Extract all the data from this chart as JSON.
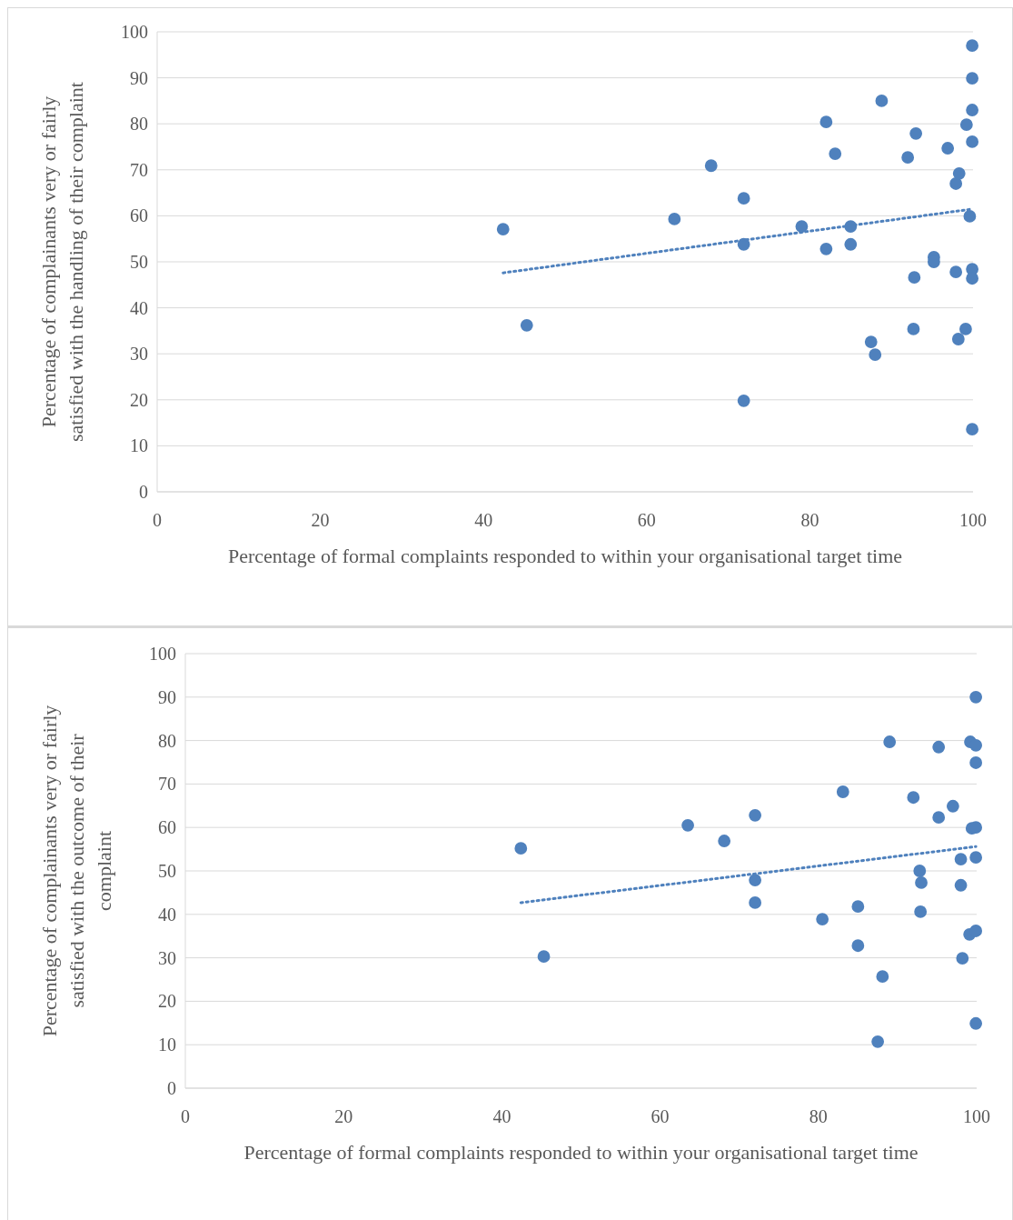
{
  "chart_data": [
    {
      "type": "scatter",
      "xlabel": "Percentage of formal complaints responded to within your organisational target time",
      "ylabel": "Percentage of complainants very or fairly satisfied with the handling of their complaint",
      "xlim": [
        0,
        100
      ],
      "ylim": [
        0,
        100
      ],
      "xticks": [
        0,
        20,
        40,
        60,
        80,
        100
      ],
      "yticks": [
        0,
        10,
        20,
        30,
        40,
        50,
        60,
        70,
        80,
        90,
        100
      ],
      "grid": "y",
      "marker": "circle",
      "series": [
        {
          "type": "scatter",
          "color": "#4f81bd",
          "x": [
            42.4,
            45.3,
            63.4,
            67.9,
            71.9,
            71.9,
            71.9,
            79.0,
            82.0,
            82.0,
            83.1,
            85.0,
            85.0,
            87.5,
            88.0,
            88.8,
            92.0,
            92.8,
            92.7,
            93.0,
            95.2,
            95.2,
            96.9,
            97.9,
            98.3,
            97.9,
            98.2,
            99.1,
            99.2,
            99.6,
            99.9,
            99.9,
            99.9,
            99.9,
            99.9,
            99.9,
            99.9
          ],
          "values": [
            57.1,
            36.2,
            59.3,
            70.9,
            63.8,
            53.8,
            19.8,
            57.7,
            80.4,
            52.8,
            73.5,
            57.7,
            53.8,
            32.6,
            29.8,
            85.0,
            72.7,
            46.6,
            35.4,
            77.9,
            51.0,
            50.0,
            74.7,
            67.0,
            69.2,
            47.8,
            33.2,
            35.4,
            79.8,
            59.9,
            97.0,
            89.9,
            83.0,
            76.1,
            48.4,
            46.4,
            13.6
          ]
        },
        {
          "type": "line",
          "color": "#4f81bd",
          "line_style": "dotted",
          "marker": "none",
          "x": [
            42.4,
            99.6
          ],
          "values": [
            47.6,
            61.4
          ]
        }
      ]
    },
    {
      "type": "scatter",
      "xlabel": "Percentage of formal complaints responded to within your organisational target time",
      "ylabel": "Percentage of complainants very or fairly satisfied with the outcome of their complaint",
      "xlim": [
        0,
        100
      ],
      "ylim": [
        0,
        100
      ],
      "xticks": [
        0,
        20,
        40,
        60,
        80,
        100
      ],
      "yticks": [
        0,
        10,
        20,
        30,
        40,
        50,
        60,
        70,
        80,
        90,
        100
      ],
      "grid": "y",
      "marker": "circle",
      "series": [
        {
          "type": "scatter",
          "color": "#4f81bd",
          "x": [
            42.4,
            45.3,
            63.5,
            68.1,
            72.0,
            72.0,
            72.0,
            80.5,
            83.1,
            85.0,
            85.0,
            87.5,
            88.1,
            89.0,
            92.0,
            92.8,
            93.0,
            92.9,
            95.2,
            95.2,
            97.0,
            98.0,
            98.0,
            98.2,
            99.2,
            99.9,
            99.9,
            99.9,
            99.4,
            99.9,
            99.9,
            99.1,
            99.9,
            99.9
          ],
          "values": [
            55.2,
            30.3,
            60.5,
            56.9,
            62.8,
            47.9,
            42.7,
            38.9,
            68.2,
            41.8,
            32.8,
            10.7,
            25.7,
            79.7,
            66.9,
            50.0,
            47.3,
            40.6,
            78.5,
            62.3,
            64.9,
            52.7,
            46.7,
            29.9,
            79.7,
            78.9,
            74.9,
            90.0,
            59.8,
            60.0,
            53.1,
            35.4,
            36.2,
            14.9
          ]
        },
        {
          "type": "line",
          "color": "#4f81bd",
          "line_style": "dotted",
          "marker": "none",
          "x": [
            42.4,
            99.9
          ],
          "values": [
            42.7,
            55.6
          ]
        }
      ]
    }
  ]
}
